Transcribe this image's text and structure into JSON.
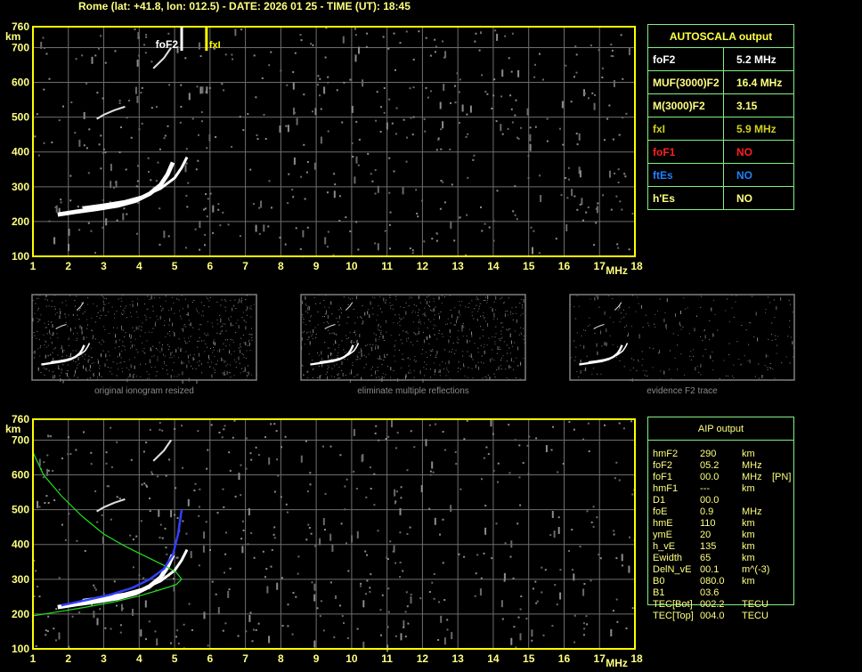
{
  "header": {
    "title": "Rome (lat: +41.8, lon: 012.5) - DATE: 2026 01 25 - TIME (UT): 18:45"
  },
  "chart_data": {
    "type": "scatter",
    "xlabel": "MHz",
    "ylabel": "km",
    "xlim": [
      1,
      18
    ],
    "ylim": [
      100,
      760
    ],
    "xticks": [
      "1",
      "2",
      "3",
      "4",
      "5",
      "6",
      "7",
      "8",
      "9",
      "10",
      "11",
      "12",
      "13",
      "14",
      "15",
      "16",
      "17",
      "18"
    ],
    "yticks": [
      "100",
      "200",
      "300",
      "400",
      "500",
      "600",
      "700",
      "760"
    ],
    "grid": true,
    "markers": {
      "foF2": {
        "label": "foF2",
        "value": 5.2,
        "color": "#ffffff"
      },
      "fxI": {
        "label": "fxI",
        "value": 5.9,
        "color": "#ffff00"
      }
    },
    "traces": {
      "o_trace": [
        [
          1.7,
          220
        ],
        [
          2.2,
          228
        ],
        [
          2.8,
          236
        ],
        [
          3.4,
          246
        ],
        [
          3.9,
          260
        ],
        [
          4.3,
          280
        ],
        [
          4.6,
          305
        ],
        [
          4.8,
          335
        ],
        [
          4.95,
          370
        ]
      ],
      "x_trace": [
        [
          2.4,
          240
        ],
        [
          3,
          248
        ],
        [
          3.6,
          258
        ],
        [
          4.1,
          272
        ],
        [
          4.6,
          295
        ],
        [
          5.0,
          325
        ],
        [
          5.2,
          355
        ],
        [
          5.35,
          385
        ]
      ],
      "second_hop": [
        [
          2.8,
          495
        ],
        [
          3,
          507
        ],
        [
          3.3,
          520
        ],
        [
          3.6,
          530
        ]
      ],
      "third_hop": [
        [
          4.4,
          640
        ],
        [
          4.7,
          670
        ],
        [
          4.9,
          700
        ]
      ]
    },
    "aip_profile_blue": [
      [
        1.8,
        225
      ],
      [
        2.5,
        240
      ],
      [
        3.2,
        256
      ],
      [
        3.8,
        275
      ],
      [
        4.3,
        300
      ],
      [
        4.7,
        330
      ],
      [
        4.95,
        370
      ],
      [
        5.1,
        430
      ],
      [
        5.2,
        500
      ]
    ],
    "aip_model_green": [
      [
        1,
        665
      ],
      [
        1.3,
        600
      ],
      [
        1.8,
        540
      ],
      [
        2.4,
        480
      ],
      [
        3,
        430
      ],
      [
        3.6,
        395
      ],
      [
        4.2,
        365
      ],
      [
        4.7,
        340
      ],
      [
        5.05,
        320
      ],
      [
        5.2,
        300
      ],
      [
        5.05,
        285
      ],
      [
        4.6,
        270
      ],
      [
        4,
        252
      ],
      [
        3.3,
        235
      ],
      [
        2.5,
        220
      ],
      [
        1.8,
        208
      ],
      [
        1,
        195
      ]
    ]
  },
  "thumbnails": [
    {
      "caption": "original ionogram resized"
    },
    {
      "caption": "eliminate multiple reflections"
    },
    {
      "caption": "evidence F2 trace"
    }
  ],
  "autoscala": {
    "title": "AUTOSCALA output",
    "rows": [
      {
        "label": "foF2",
        "value": "5.2 MHz",
        "color": "#ffffff"
      },
      {
        "label": "MUF(3000)F2",
        "value": "16.4 MHz",
        "color": "#ffff80"
      },
      {
        "label": "M(3000)F2",
        "value": "3.15",
        "color": "#ffff80"
      },
      {
        "label": "fxI",
        "value": "5.9 MHz",
        "color": "#d0d020"
      },
      {
        "label": "foF1",
        "value": "NO",
        "color": "#ff2020"
      },
      {
        "label": "ftEs",
        "value": "NO",
        "color": "#2080ff"
      },
      {
        "label": "h'Es",
        "value": "NO",
        "color": "#ffff80"
      }
    ]
  },
  "aip": {
    "title": "AIP output",
    "rows": [
      [
        "hmF2",
        "290",
        "km",
        ""
      ],
      [
        "foF2",
        "05.2",
        "MHz",
        ""
      ],
      [
        "foF1",
        "00.0",
        "MHz",
        "[PN]"
      ],
      [
        "hmF1",
        "---",
        "km",
        ""
      ],
      [
        "D1",
        "00.0",
        "",
        ""
      ],
      [
        "foE",
        "0.9",
        "MHz",
        ""
      ],
      [
        "hmE",
        "110",
        "km",
        ""
      ],
      [
        "ymE",
        "20",
        "km",
        ""
      ],
      [
        "h_vE",
        "135",
        "km",
        ""
      ],
      [
        "Ewidth",
        "65",
        "km",
        ""
      ],
      [
        "DelN_vE",
        "00.1",
        "m^(-3)",
        ""
      ],
      [
        "B0",
        "080.0",
        "km",
        ""
      ],
      [
        "B1",
        "03.6",
        "",
        ""
      ],
      [
        "TEC[Bot]",
        "002.2",
        "TECU",
        ""
      ],
      [
        "TEC[Top]",
        "004.0",
        "TECU",
        ""
      ]
    ]
  }
}
